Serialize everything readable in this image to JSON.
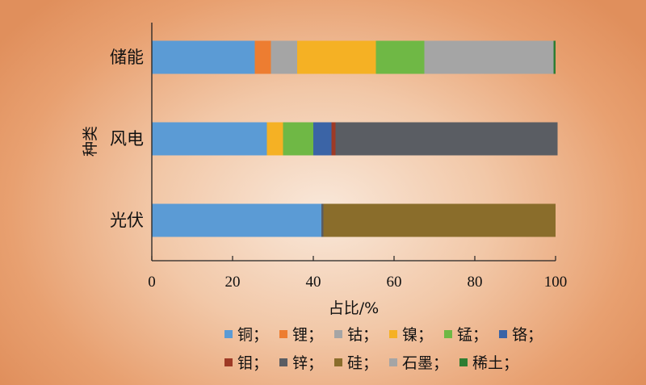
{
  "chart_data": {
    "type": "bar",
    "orientation": "horizontal",
    "stacked": true,
    "categories": [
      "储能",
      "风电",
      "光伏"
    ],
    "xlabel": "占比/%",
    "ylabel": "种类",
    "xlim": [
      0,
      100
    ],
    "xticks": [
      0,
      20,
      40,
      60,
      80,
      100
    ],
    "grid": false,
    "legend_position": "bottom",
    "legend_separator": "；",
    "series": [
      {
        "name": "铜",
        "color": "#5b9bd5",
        "values": [
          25.5,
          28.5,
          42
        ]
      },
      {
        "name": "锂",
        "color": "#ed7d31",
        "values": [
          4,
          0,
          0
        ]
      },
      {
        "name": "钴",
        "color": "#a5a5a5",
        "values": [
          6.5,
          0,
          0
        ]
      },
      {
        "name": "镍",
        "color": "#f5b124",
        "values": [
          19.5,
          4,
          0
        ]
      },
      {
        "name": "锰",
        "color": "#6fb845",
        "values": [
          12,
          7.5,
          0
        ]
      },
      {
        "name": "铬",
        "color": "#3b64a6",
        "values": [
          0,
          4.5,
          0
        ]
      },
      {
        "name": "钼",
        "color": "#9e3a26",
        "values": [
          0,
          1,
          0
        ]
      },
      {
        "name": "锌",
        "color": "#5a5d63",
        "values": [
          0,
          55,
          0.5
        ]
      },
      {
        "name": "硅",
        "color": "#8a6d2b",
        "values": [
          0,
          0,
          57.5
        ]
      },
      {
        "name": "石墨",
        "color": "#a5a5a5",
        "values": [
          32,
          0,
          0
        ]
      },
      {
        "name": "稀土",
        "color": "#2e7d32",
        "values": [
          0.5,
          0,
          0
        ]
      }
    ]
  }
}
